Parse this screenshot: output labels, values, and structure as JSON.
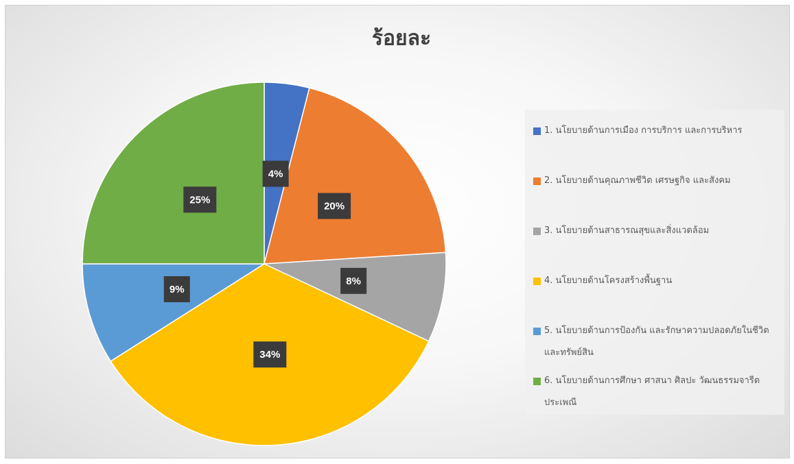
{
  "chart_data": {
    "type": "pie",
    "title": "ร้อยละ",
    "categories": [
      "1. นโยบายด้านการเมือง การบริการ และการบริหาร",
      "2. นโยบายด้านคุณภาพชีวิต เศรษฐกิจ และสังคม",
      "3. นโยบายด้านสาธารณสุขและสิ่งแวดล้อม",
      "4. นโยบายด้านโครงสร้างพื้นฐาน",
      "5. นโยบายด้านการป้องกัน และรักษาความปลอดภัยในชีวิตและทรัพย์สิน",
      "6. นโยบายด้านการศึกษา ศาสนา ศิลปะ วัฒนธรรมจารีตประเพณี"
    ],
    "values": [
      4,
      20,
      8,
      34,
      9,
      25
    ],
    "value_labels": [
      "4%",
      "20%",
      "8%",
      "34%",
      "9%",
      "25%"
    ],
    "colors": [
      "#4472c4",
      "#ed7d31",
      "#a5a5a5",
      "#ffc000",
      "#5b9bd5",
      "#70ad47"
    ],
    "legend": "right"
  }
}
